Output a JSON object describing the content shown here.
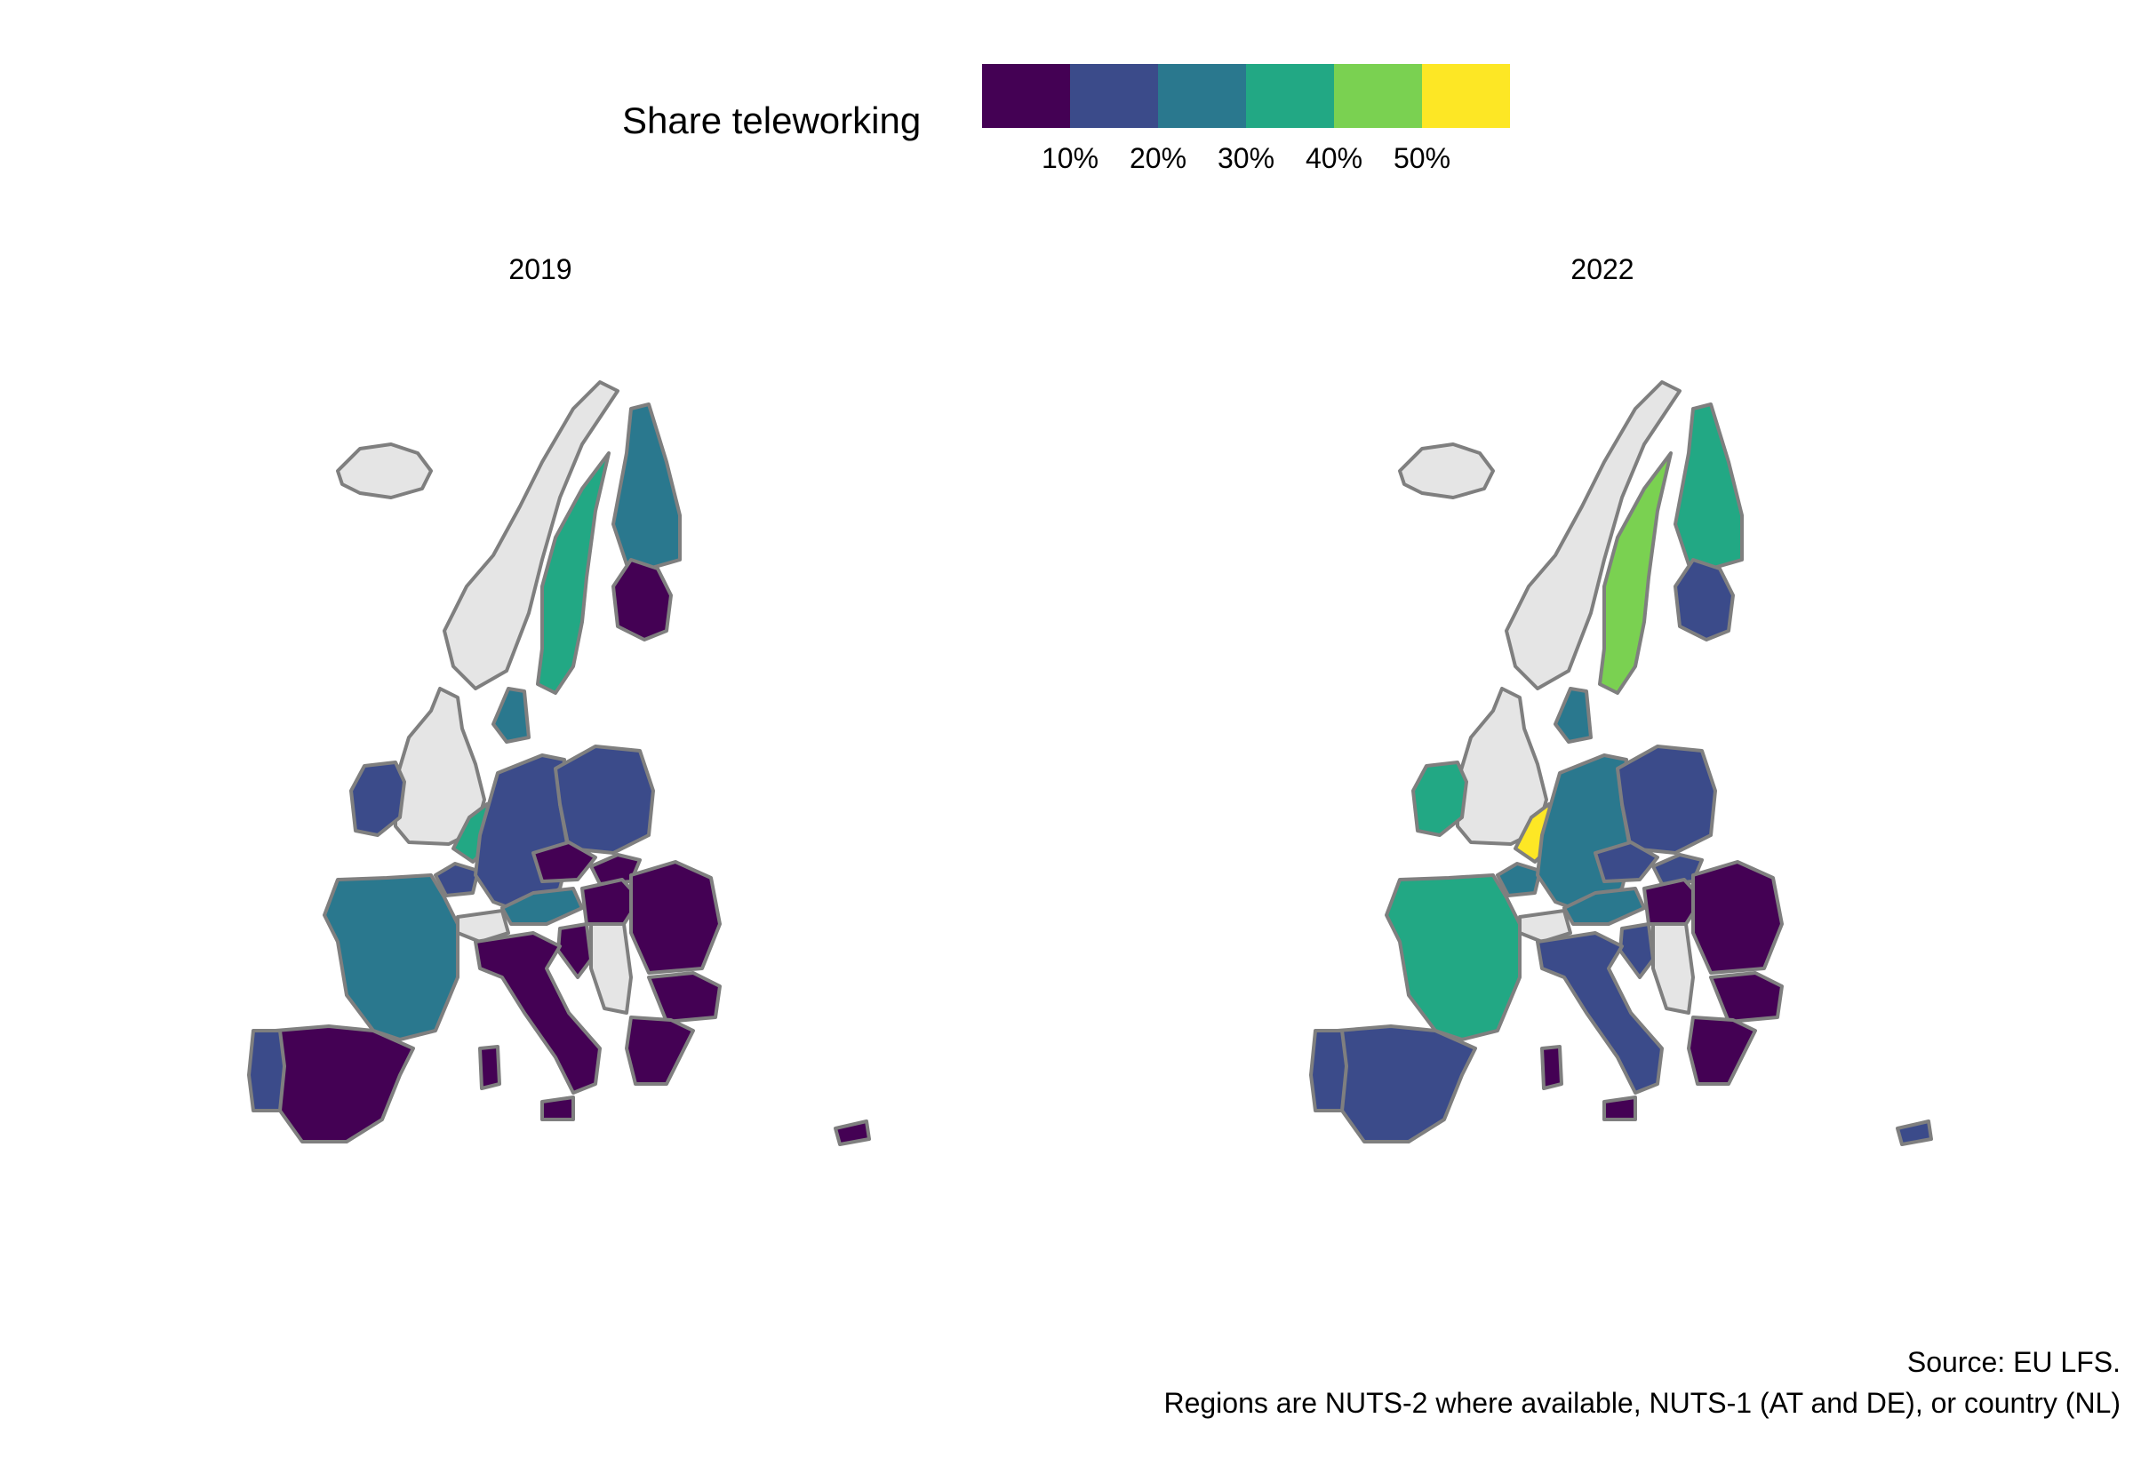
{
  "legend": {
    "title": "Share teleworking",
    "bins": [
      "#440154",
      "#3b4b8a",
      "#2a788e",
      "#22a884",
      "#7ad151",
      "#fde725"
    ],
    "ticks": [
      "10%",
      "20%",
      "30%",
      "40%",
      "50%"
    ]
  },
  "panels": [
    {
      "title": "2019"
    },
    {
      "title": "2022"
    }
  ],
  "colors": {
    "no_data": "#e5e5e5",
    "country_border": "#7f7f7f",
    "region_border": "#d9d9d9"
  },
  "caption": {
    "line1": "Source: EU LFS.",
    "line2": "Regions are NUTS-2 where available, NUTS-1 (AT and DE), or country (NL)"
  }
}
